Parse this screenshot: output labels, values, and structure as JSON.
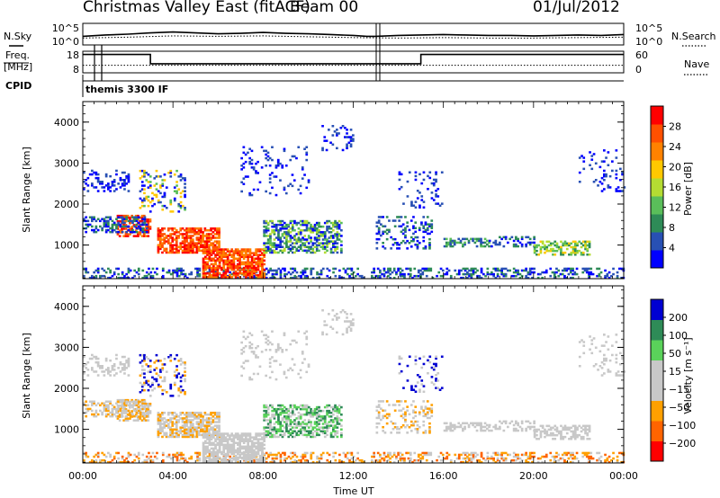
{
  "header": {
    "radar": "Christmas Valley East (fitACF)",
    "beam": "Beam 00",
    "date": "01/Jul/2012"
  },
  "labels": {
    "nsky": "N.Sky",
    "nsearch": "N.Search",
    "freq_line1": "Freq.",
    "freq_line2": "[MHz]",
    "nave": "Nave",
    "cpid": "CPID",
    "cpid_value": "themis 3300 IF"
  },
  "colors": {
    "power": [
      "#0000ff",
      "#2850b4",
      "#2e8b57",
      "#5abe5a",
      "#b4dc32",
      "#ffc800",
      "#ff8200",
      "#ff5000",
      "#ff0000"
    ],
    "velocity": [
      "#ff0000",
      "#ff6400",
      "#ffa000",
      "#c8c8c8",
      "#c8c8c8",
      "#5ad25a",
      "#2e8b57",
      "#0000d2"
    ],
    "ground_scatter": "#c8c8c8"
  },
  "chart_data": [
    {
      "type": "line",
      "name": "noise-panel",
      "left_axis": {
        "ticks": [
          "10^5",
          "10^0"
        ]
      },
      "right_axis": {
        "ticks": [
          "10^5",
          "10^0"
        ]
      },
      "x_range_hours": [
        0,
        24
      ],
      "series": [
        {
          "name": "N.Sky",
          "style": "solid",
          "x": [
            0,
            1,
            2,
            3,
            4,
            5,
            6,
            7,
            8,
            9,
            10,
            11,
            12,
            12.6,
            13,
            14,
            15,
            16,
            17,
            18,
            19,
            20,
            21,
            22,
            23,
            24
          ],
          "y": [
            2.0,
            2.3,
            2.5,
            2.8,
            3.0,
            2.8,
            2.6,
            2.7,
            2.9,
            2.7,
            2.6,
            2.4,
            2.2,
            2.0,
            2.0,
            2.2,
            2.3,
            2.4,
            2.3,
            2.2,
            2.2,
            2.1,
            2.2,
            2.3,
            2.2,
            2.4
          ]
        },
        {
          "name": "N.Search",
          "style": "dotted",
          "x": [
            0,
            2,
            4,
            6,
            8,
            10,
            12,
            14,
            16,
            18,
            20,
            22,
            24
          ],
          "y": [
            1.6,
            1.8,
            2.1,
            2.0,
            2.1,
            1.9,
            1.7,
            1.6,
            1.7,
            1.6,
            1.6,
            1.7,
            1.8
          ]
        }
      ]
    },
    {
      "type": "line",
      "name": "freq-nave-panel",
      "left_axis": {
        "ticks": [
          "18",
          "8"
        ],
        "range": [
          8,
          18
        ]
      },
      "right_axis": {
        "ticks": [
          "60",
          "0"
        ],
        "range": [
          0,
          60
        ]
      },
      "series": [
        {
          "name": "Freq.",
          "style": "solid",
          "x": [
            0,
            3.0,
            3.0,
            15.0,
            15.0,
            24
          ],
          "y": [
            16.5,
            16.5,
            12.2,
            12.2,
            16.5,
            16.5
          ]
        },
        {
          "name": "Nave",
          "style": "dotted",
          "x": [
            0,
            24
          ],
          "y": [
            21,
            21
          ]
        }
      ]
    },
    {
      "type": "heatmap",
      "name": "power-panel",
      "ylabel": "Slant Range [km]",
      "yticks": [
        "4000",
        "3000",
        "2000",
        "1000"
      ],
      "ytick_values": [
        4000,
        3000,
        2000,
        1000
      ],
      "ylim": [
        180,
        4500
      ],
      "colorbar": {
        "label": "Power [dB]",
        "ticks": [
          "28",
          "24",
          "20",
          "16",
          "12",
          "8",
          "4"
        ],
        "range": [
          0,
          32
        ]
      }
    },
    {
      "type": "heatmap",
      "name": "velocity-panel",
      "ylabel": "Slant Range [km]",
      "yticks": [
        "4000",
        "3000",
        "2000",
        "1000"
      ],
      "ytick_values": [
        4000,
        3000,
        2000,
        1000
      ],
      "ylim": [
        180,
        4500
      ],
      "xlabel": "Time UT",
      "xticks": [
        "00:00",
        "04:00",
        "08:00",
        "12:00",
        "16:00",
        "20:00",
        "00:00"
      ],
      "xtick_hours": [
        0,
        4,
        8,
        12,
        16,
        20,
        24
      ],
      "colorbar": {
        "label": "Velocity [m s⁻¹]",
        "ticks": [
          "200",
          "100",
          "50",
          "15",
          "−15",
          "−50",
          "−100",
          "−200"
        ]
      }
    }
  ]
}
